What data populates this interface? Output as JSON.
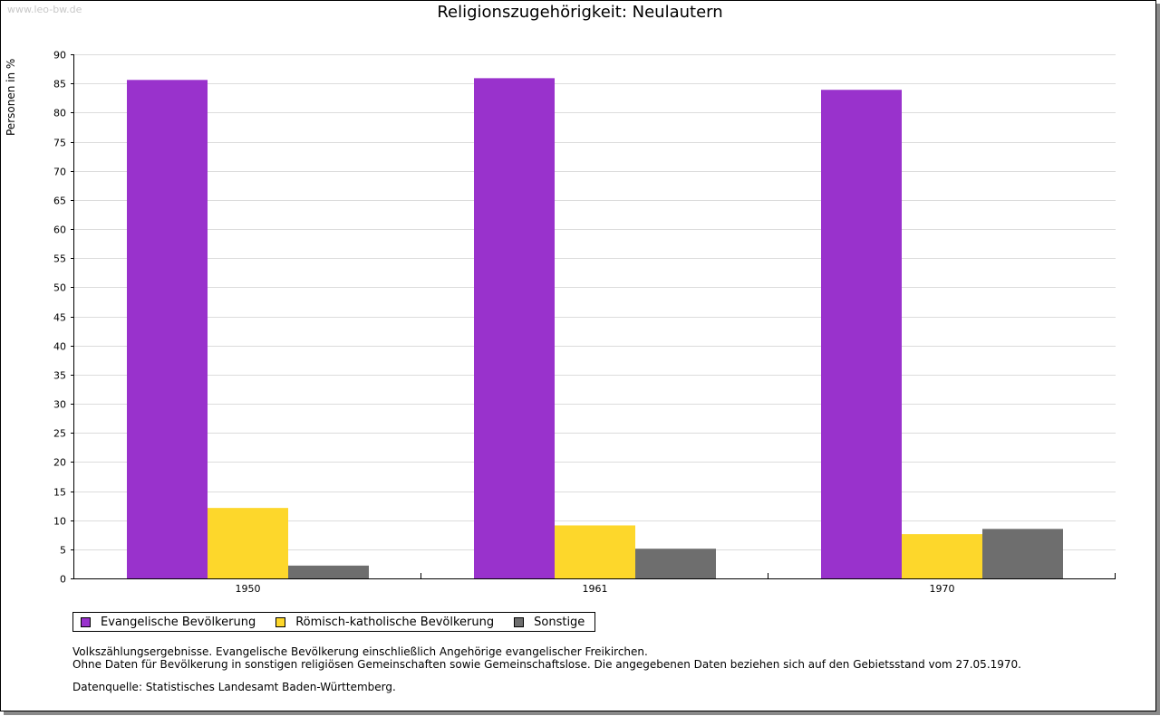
{
  "watermark": "www.leo-bw.de",
  "chart_data": {
    "type": "bar",
    "title": "Religionszugehörigkeit: Neulautern",
    "xlabel": "",
    "ylabel": "Personen in %",
    "ylim": [
      0,
      90
    ],
    "ytick_step": 5,
    "grid": true,
    "legend_position": "bottom-left",
    "categories": [
      "1950",
      "1961",
      "1970"
    ],
    "series": [
      {
        "name": "Evangelische Bevölkerung",
        "color": "#9932cc",
        "values": [
          85.6,
          85.9,
          83.9
        ]
      },
      {
        "name": "Römisch-katholische Bevölkerung",
        "color": "#fdd72b",
        "values": [
          12.1,
          9.1,
          7.6
        ]
      },
      {
        "name": "Sonstige",
        "color": "#6e6e6e",
        "values": [
          2.2,
          5.1,
          8.5
        ]
      }
    ]
  },
  "notes": {
    "line1": "Volkszählungsergebnisse. Evangelische Bevölkerung einschließlich Angehörige evangelischer Freikirchen.",
    "line2": "Ohne Daten für Bevölkerung in sonstigen religiösen Gemeinschaften sowie Gemeinschaftslose. Die angegebenen Daten beziehen sich auf den Gebietsstand vom 27.05.1970."
  },
  "source": "Datenquelle: Statistisches Landesamt Baden-Württemberg."
}
